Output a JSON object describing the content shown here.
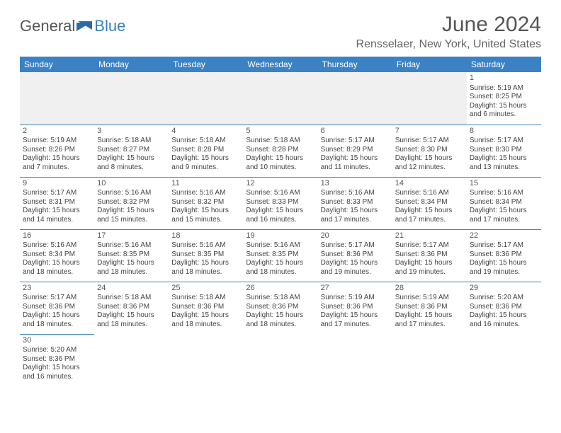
{
  "branding": {
    "logo_text_1": "General",
    "logo_text_2": "Blue",
    "logo_color_gray": "#555555",
    "logo_color_blue": "#3b7fc4"
  },
  "header": {
    "month_title": "June 2024",
    "location": "Rensselaer, New York, United States"
  },
  "style": {
    "header_bg": "#3b82c4",
    "header_fg": "#ffffff",
    "border_color": "#3b82c4",
    "empty_bg": "#f0f0f0",
    "text_color": "#444444",
    "page_bg": "#ffffff",
    "month_title_fontsize": 30,
    "location_fontsize": 16,
    "dayheader_fontsize": 12,
    "cell_fontsize": 10
  },
  "day_headers": [
    "Sunday",
    "Monday",
    "Tuesday",
    "Wednesday",
    "Thursday",
    "Friday",
    "Saturday"
  ],
  "weeks": [
    [
      null,
      null,
      null,
      null,
      null,
      null,
      {
        "n": "1",
        "sr": "Sunrise: 5:19 AM",
        "ss": "Sunset: 8:25 PM",
        "d1": "Daylight: 15 hours",
        "d2": "and 6 minutes."
      }
    ],
    [
      {
        "n": "2",
        "sr": "Sunrise: 5:19 AM",
        "ss": "Sunset: 8:26 PM",
        "d1": "Daylight: 15 hours",
        "d2": "and 7 minutes."
      },
      {
        "n": "3",
        "sr": "Sunrise: 5:18 AM",
        "ss": "Sunset: 8:27 PM",
        "d1": "Daylight: 15 hours",
        "d2": "and 8 minutes."
      },
      {
        "n": "4",
        "sr": "Sunrise: 5:18 AM",
        "ss": "Sunset: 8:28 PM",
        "d1": "Daylight: 15 hours",
        "d2": "and 9 minutes."
      },
      {
        "n": "5",
        "sr": "Sunrise: 5:18 AM",
        "ss": "Sunset: 8:28 PM",
        "d1": "Daylight: 15 hours",
        "d2": "and 10 minutes."
      },
      {
        "n": "6",
        "sr": "Sunrise: 5:17 AM",
        "ss": "Sunset: 8:29 PM",
        "d1": "Daylight: 15 hours",
        "d2": "and 11 minutes."
      },
      {
        "n": "7",
        "sr": "Sunrise: 5:17 AM",
        "ss": "Sunset: 8:30 PM",
        "d1": "Daylight: 15 hours",
        "d2": "and 12 minutes."
      },
      {
        "n": "8",
        "sr": "Sunrise: 5:17 AM",
        "ss": "Sunset: 8:30 PM",
        "d1": "Daylight: 15 hours",
        "d2": "and 13 minutes."
      }
    ],
    [
      {
        "n": "9",
        "sr": "Sunrise: 5:17 AM",
        "ss": "Sunset: 8:31 PM",
        "d1": "Daylight: 15 hours",
        "d2": "and 14 minutes."
      },
      {
        "n": "10",
        "sr": "Sunrise: 5:16 AM",
        "ss": "Sunset: 8:32 PM",
        "d1": "Daylight: 15 hours",
        "d2": "and 15 minutes."
      },
      {
        "n": "11",
        "sr": "Sunrise: 5:16 AM",
        "ss": "Sunset: 8:32 PM",
        "d1": "Daylight: 15 hours",
        "d2": "and 15 minutes."
      },
      {
        "n": "12",
        "sr": "Sunrise: 5:16 AM",
        "ss": "Sunset: 8:33 PM",
        "d1": "Daylight: 15 hours",
        "d2": "and 16 minutes."
      },
      {
        "n": "13",
        "sr": "Sunrise: 5:16 AM",
        "ss": "Sunset: 8:33 PM",
        "d1": "Daylight: 15 hours",
        "d2": "and 17 minutes."
      },
      {
        "n": "14",
        "sr": "Sunrise: 5:16 AM",
        "ss": "Sunset: 8:34 PM",
        "d1": "Daylight: 15 hours",
        "d2": "and 17 minutes."
      },
      {
        "n": "15",
        "sr": "Sunrise: 5:16 AM",
        "ss": "Sunset: 8:34 PM",
        "d1": "Daylight: 15 hours",
        "d2": "and 17 minutes."
      }
    ],
    [
      {
        "n": "16",
        "sr": "Sunrise: 5:16 AM",
        "ss": "Sunset: 8:34 PM",
        "d1": "Daylight: 15 hours",
        "d2": "and 18 minutes."
      },
      {
        "n": "17",
        "sr": "Sunrise: 5:16 AM",
        "ss": "Sunset: 8:35 PM",
        "d1": "Daylight: 15 hours",
        "d2": "and 18 minutes."
      },
      {
        "n": "18",
        "sr": "Sunrise: 5:16 AM",
        "ss": "Sunset: 8:35 PM",
        "d1": "Daylight: 15 hours",
        "d2": "and 18 minutes."
      },
      {
        "n": "19",
        "sr": "Sunrise: 5:16 AM",
        "ss": "Sunset: 8:35 PM",
        "d1": "Daylight: 15 hours",
        "d2": "and 18 minutes."
      },
      {
        "n": "20",
        "sr": "Sunrise: 5:17 AM",
        "ss": "Sunset: 8:36 PM",
        "d1": "Daylight: 15 hours",
        "d2": "and 19 minutes."
      },
      {
        "n": "21",
        "sr": "Sunrise: 5:17 AM",
        "ss": "Sunset: 8:36 PM",
        "d1": "Daylight: 15 hours",
        "d2": "and 19 minutes."
      },
      {
        "n": "22",
        "sr": "Sunrise: 5:17 AM",
        "ss": "Sunset: 8:36 PM",
        "d1": "Daylight: 15 hours",
        "d2": "and 19 minutes."
      }
    ],
    [
      {
        "n": "23",
        "sr": "Sunrise: 5:17 AM",
        "ss": "Sunset: 8:36 PM",
        "d1": "Daylight: 15 hours",
        "d2": "and 18 minutes."
      },
      {
        "n": "24",
        "sr": "Sunrise: 5:18 AM",
        "ss": "Sunset: 8:36 PM",
        "d1": "Daylight: 15 hours",
        "d2": "and 18 minutes."
      },
      {
        "n": "25",
        "sr": "Sunrise: 5:18 AM",
        "ss": "Sunset: 8:36 PM",
        "d1": "Daylight: 15 hours",
        "d2": "and 18 minutes."
      },
      {
        "n": "26",
        "sr": "Sunrise: 5:18 AM",
        "ss": "Sunset: 8:36 PM",
        "d1": "Daylight: 15 hours",
        "d2": "and 18 minutes."
      },
      {
        "n": "27",
        "sr": "Sunrise: 5:19 AM",
        "ss": "Sunset: 8:36 PM",
        "d1": "Daylight: 15 hours",
        "d2": "and 17 minutes."
      },
      {
        "n": "28",
        "sr": "Sunrise: 5:19 AM",
        "ss": "Sunset: 8:36 PM",
        "d1": "Daylight: 15 hours",
        "d2": "and 17 minutes."
      },
      {
        "n": "29",
        "sr": "Sunrise: 5:20 AM",
        "ss": "Sunset: 8:36 PM",
        "d1": "Daylight: 15 hours",
        "d2": "and 16 minutes."
      }
    ],
    [
      {
        "n": "30",
        "sr": "Sunrise: 5:20 AM",
        "ss": "Sunset: 8:36 PM",
        "d1": "Daylight: 15 hours",
        "d2": "and 16 minutes."
      },
      null,
      null,
      null,
      null,
      null,
      null
    ]
  ]
}
